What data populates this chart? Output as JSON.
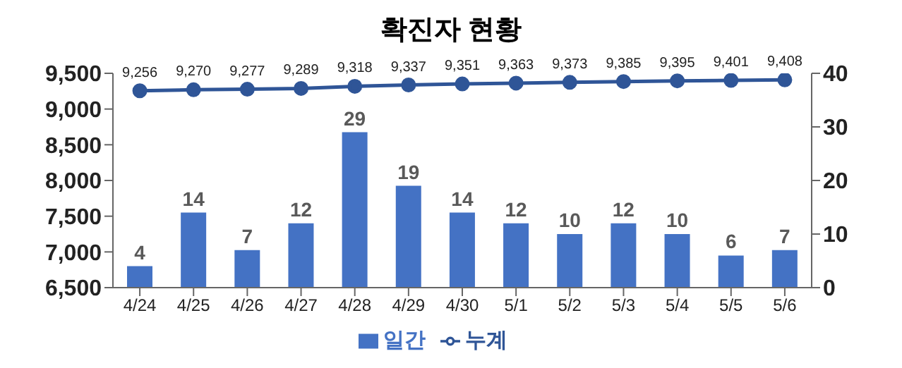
{
  "chart_data": {
    "type": "bar",
    "title": "확진자 현황",
    "categories": [
      "4/24",
      "4/25",
      "4/26",
      "4/27",
      "4/28",
      "4/29",
      "4/30",
      "5/1",
      "5/2",
      "5/3",
      "5/4",
      "5/5",
      "5/6"
    ],
    "series": [
      {
        "name": "일간",
        "axis": "y2",
        "color": "#4472c4",
        "values": [
          4,
          14,
          7,
          12,
          29,
          19,
          14,
          12,
          10,
          12,
          10,
          6,
          7
        ]
      },
      {
        "name": "누계",
        "type": "line",
        "color": "#2f5597",
        "values": [
          9256,
          9270,
          9277,
          9289,
          9318,
          9337,
          9351,
          9363,
          9373,
          9385,
          9395,
          9401,
          9408
        ],
        "value_labels": [
          "9,256",
          "9,270",
          "9,277",
          "9,289",
          "9,318",
          "9,337",
          "9,351",
          "9,363",
          "9,373",
          "9,385",
          "9,395",
          "9,401",
          "9,408"
        ]
      }
    ],
    "ylim": [
      6500,
      9500
    ],
    "yticks": [
      {
        "value": 6500,
        "label": "6,500"
      },
      {
        "value": 7000,
        "label": "7,000"
      },
      {
        "value": 7500,
        "label": "7,500"
      },
      {
        "value": 8000,
        "label": "8,000"
      },
      {
        "value": 8500,
        "label": "8,500"
      },
      {
        "value": 9000,
        "label": "9,000"
      },
      {
        "value": 9500,
        "label": "9,500"
      }
    ],
    "y2lim": [
      0,
      40
    ],
    "y2ticks": [
      0,
      10,
      20,
      30,
      40
    ],
    "data_labels": true,
    "legend": "bottom",
    "marker": "circle",
    "grid": false
  }
}
